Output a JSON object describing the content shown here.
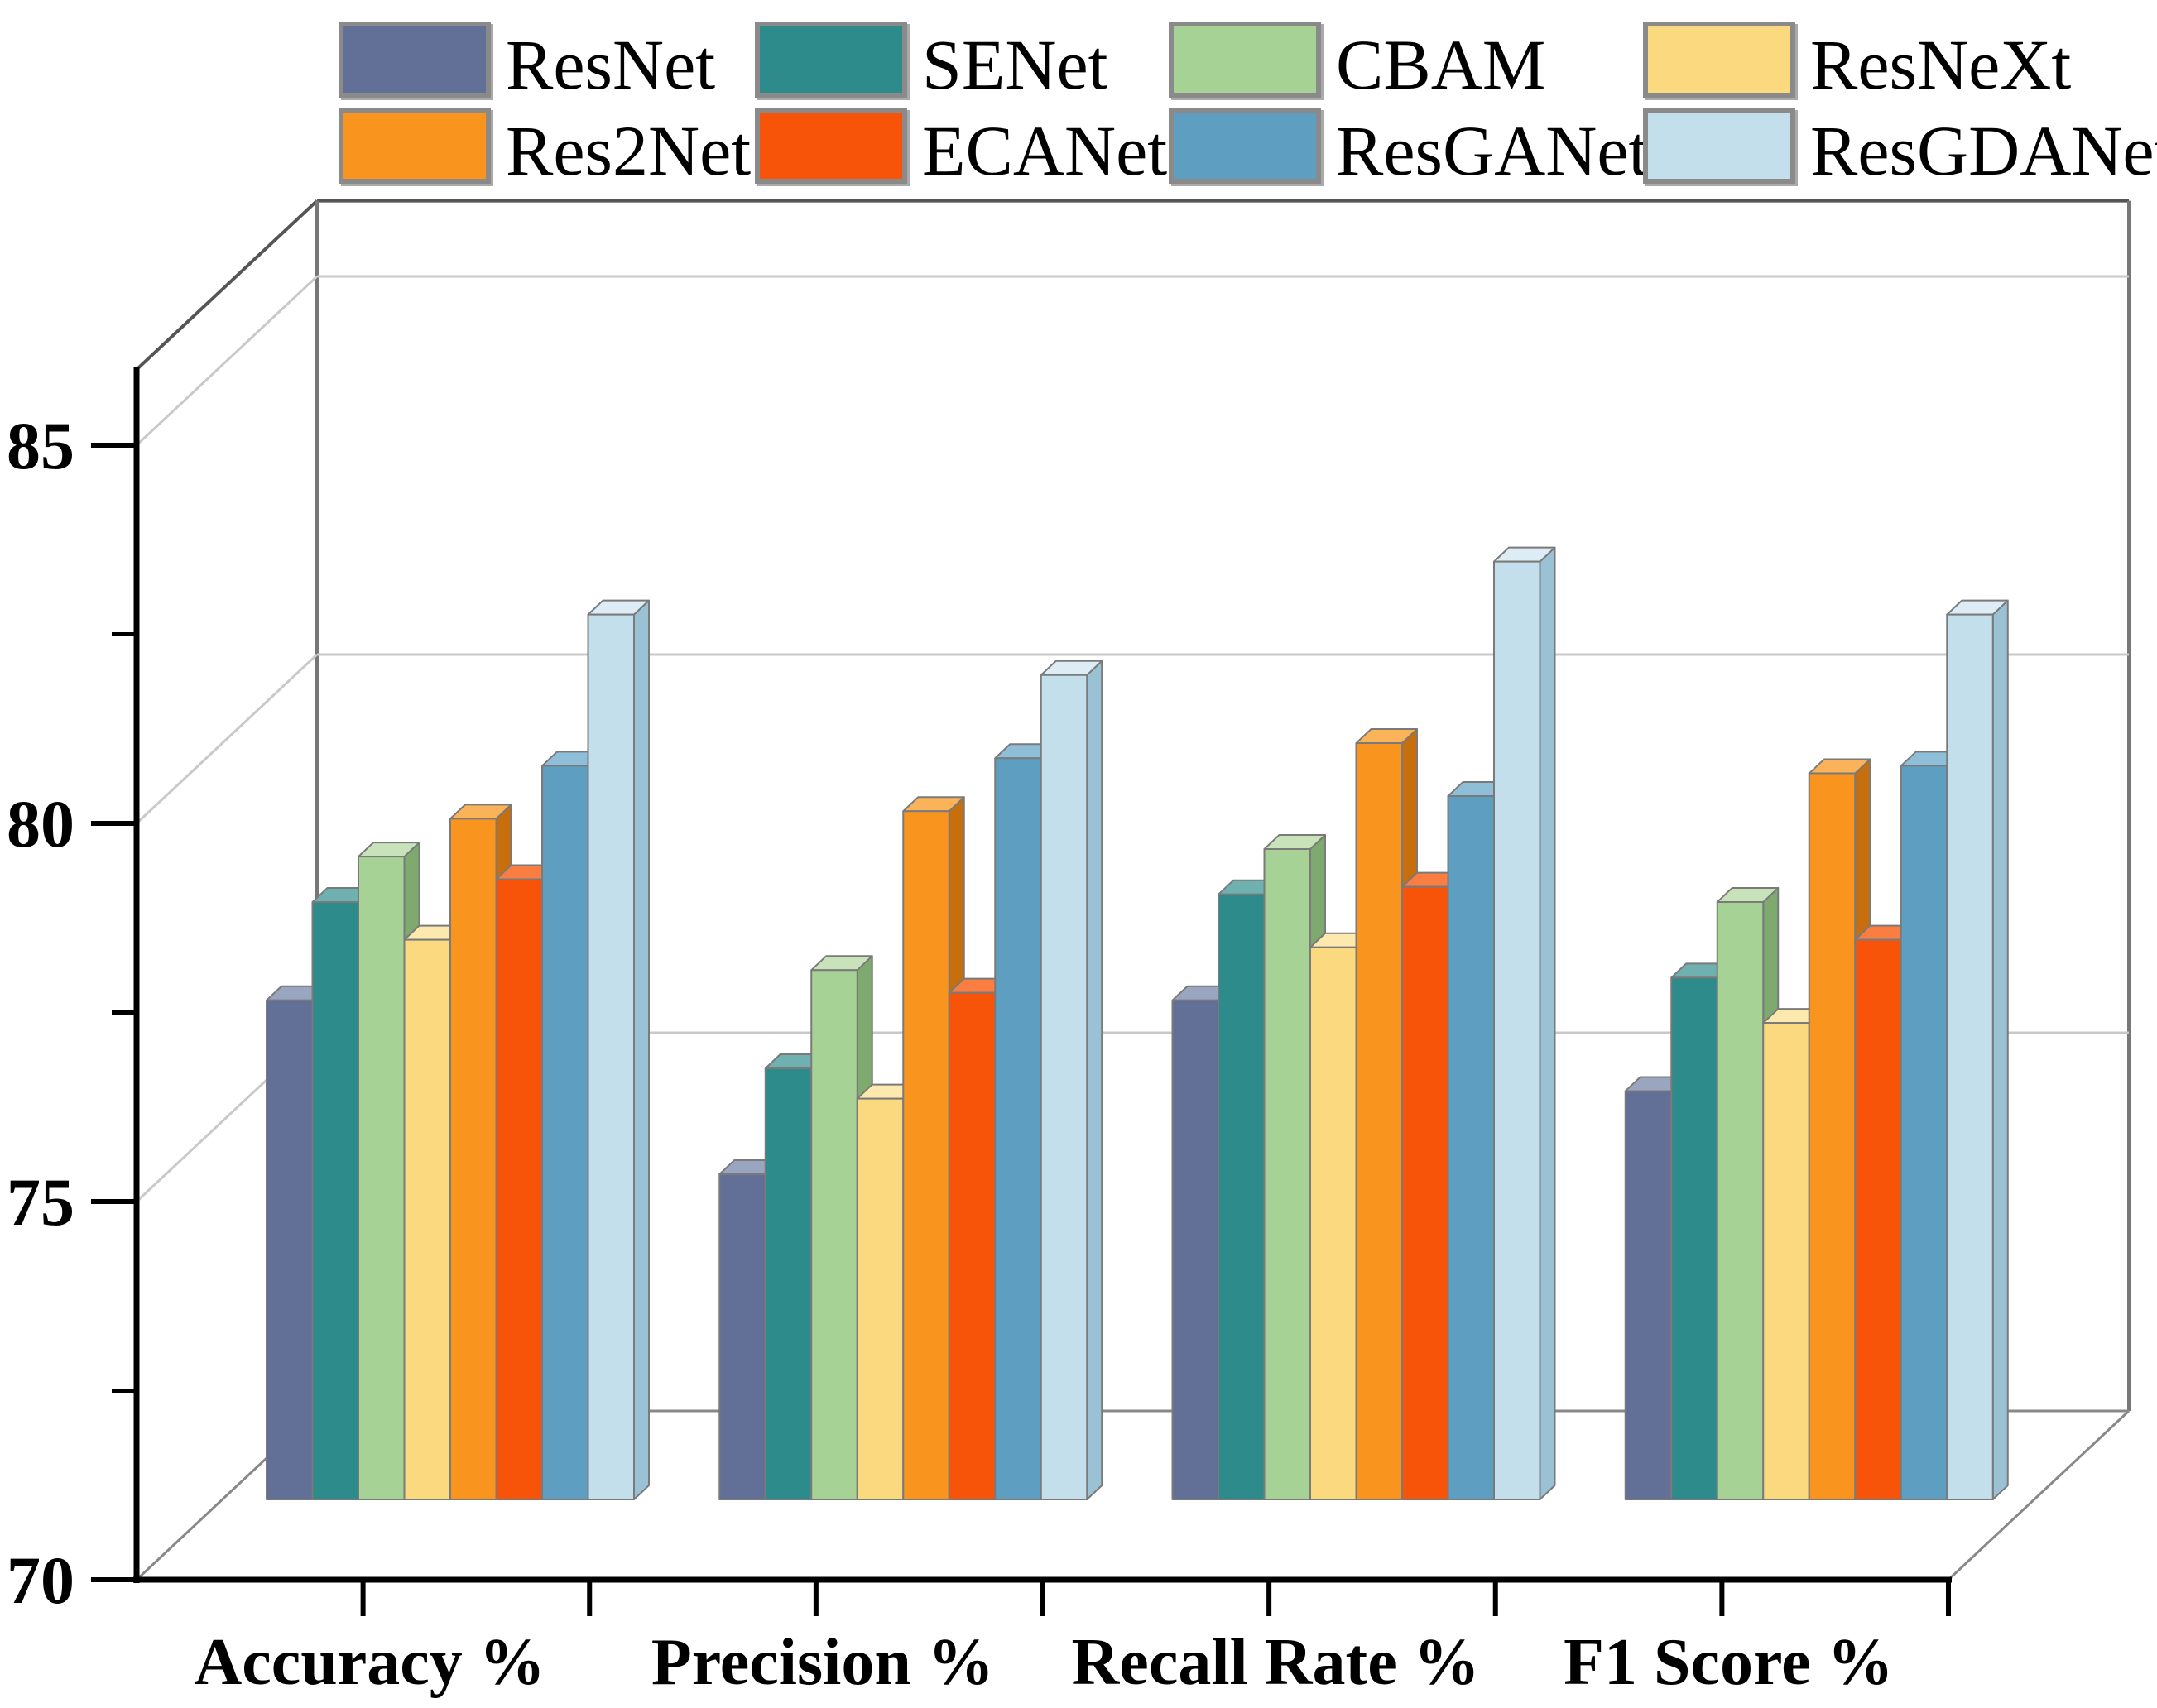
{
  "chart_data": {
    "type": "bar",
    "projection": "3d-oblique",
    "title": "",
    "xlabel": "",
    "ylabel": "",
    "categories": [
      "Accuracy %",
      "Precision %",
      "Recall Rate %",
      "F1 Score %"
    ],
    "series": [
      {
        "name": "ResNet",
        "color": "#626F96",
        "top_color": "#9AA5BF",
        "side_color": "#47547A",
        "values": [
          76.6,
          74.3,
          76.6,
          75.4
        ]
      },
      {
        "name": "SENet",
        "color": "#2E8B8B",
        "top_color": "#6FB0B0",
        "side_color": "#1E6868",
        "values": [
          77.9,
          75.7,
          78.0,
          76.9
        ]
      },
      {
        "name": "CBAM",
        "color": "#A7D295",
        "top_color": "#C8E3BA",
        "side_color": "#7EA96F",
        "values": [
          78.5,
          77.0,
          78.6,
          77.9
        ]
      },
      {
        "name": "ResNeXt",
        "color": "#FBDA7F",
        "top_color": "#FDE9AE",
        "side_color": "#D8B254",
        "values": [
          77.4,
          75.3,
          77.3,
          76.3
        ]
      },
      {
        "name": "Res2Net",
        "color": "#F9941E",
        "top_color": "#FBB35A",
        "side_color": "#C76E0D",
        "values": [
          79.0,
          79.1,
          80.0,
          79.6
        ]
      },
      {
        "name": "ECANet",
        "color": "#F85409",
        "top_color": "#FA7E42",
        "side_color": "#C23D04",
        "values": [
          78.2,
          76.7,
          78.1,
          77.4
        ]
      },
      {
        "name": "ResGANet",
        "color": "#5E9EC0",
        "top_color": "#8FBED8",
        "side_color": "#427899",
        "values": [
          79.7,
          79.8,
          79.3,
          79.7
        ]
      },
      {
        "name": "ResGDANet",
        "color": "#C4DFEC",
        "top_color": "#DEEDF5",
        "side_color": "#9BC2D4",
        "values": [
          81.7,
          80.9,
          82.4,
          81.7
        ]
      }
    ],
    "ylim": [
      70,
      86
    ],
    "y_ticks": [
      70,
      75,
      80,
      85
    ],
    "y_minor_ticks": [
      72.5,
      77.5,
      82.5
    ],
    "grid": true,
    "gridline_color": "#C9C9C9",
    "frame_color": "#888888",
    "axis_color": "#000000",
    "legend_position": "top",
    "legend_rows": 2,
    "legend_columns": 4
  }
}
